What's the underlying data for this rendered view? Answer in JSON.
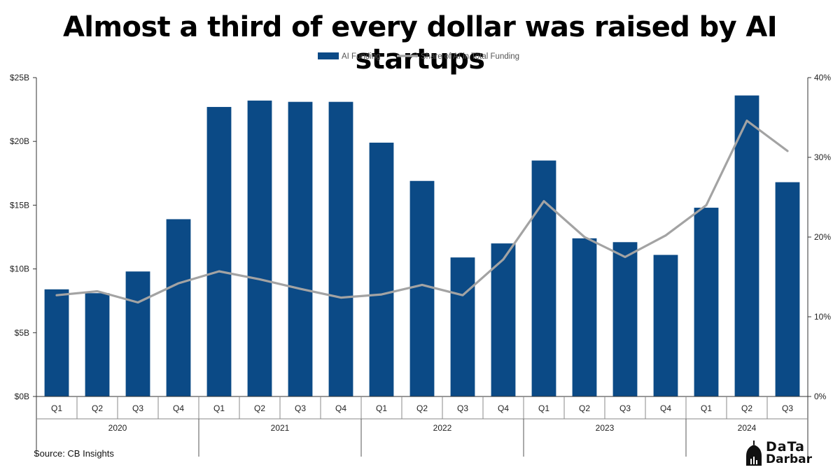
{
  "title": "Almost a third of every dollar was raised by AI startups",
  "source": "Source: CB Insights",
  "logo": {
    "line1": "DaTa",
    "line2": "Darbar"
  },
  "colors": {
    "bar": "#0b4a86",
    "line": "#a3a3a3",
    "axis": "#333333"
  },
  "chart_data": {
    "type": "bar",
    "categories": [
      "Q1",
      "Q2",
      "Q3",
      "Q4",
      "Q1",
      "Q2",
      "Q3",
      "Q4",
      "Q1",
      "Q2",
      "Q3",
      "Q4",
      "Q1",
      "Q2",
      "Q3",
      "Q4",
      "Q1",
      "Q2",
      "Q3"
    ],
    "groups": [
      {
        "label": "2020",
        "count": 4
      },
      {
        "label": "2021",
        "count": 4
      },
      {
        "label": "2022",
        "count": 4
      },
      {
        "label": "2023",
        "count": 4
      },
      {
        "label": "2024",
        "count": 3
      }
    ],
    "series": [
      {
        "name": "AI Funding",
        "kind": "bar",
        "axis": "left",
        "values": [
          8.4,
          8.1,
          9.8,
          13.9,
          22.7,
          23.2,
          23.1,
          23.1,
          19.9,
          16.9,
          10.9,
          12.0,
          18.5,
          12.4,
          12.1,
          11.1,
          14.8,
          23.6,
          16.8
        ]
      },
      {
        "name": "Share of AI in Total Funding",
        "kind": "line",
        "axis": "right",
        "values": [
          12.7,
          13.2,
          11.8,
          14.2,
          15.7,
          14.7,
          13.5,
          12.4,
          12.8,
          14.0,
          12.7,
          17.2,
          24.5,
          20.0,
          17.5,
          20.2,
          24.0,
          34.6,
          30.8
        ]
      }
    ],
    "y_left": {
      "min": 0,
      "max": 25,
      "ticks": [
        0,
        5,
        10,
        15,
        20,
        25
      ],
      "tick_labels": [
        "$0B",
        "$5B",
        "$10B",
        "$15B",
        "$20B",
        "$25B"
      ]
    },
    "y_right": {
      "min": 0,
      "max": 40,
      "ticks": [
        0,
        10,
        20,
        30,
        40
      ],
      "tick_labels": [
        "0%",
        "10%",
        "20%",
        "30%",
        "40%"
      ]
    },
    "legend": "top-center",
    "grid": false
  }
}
